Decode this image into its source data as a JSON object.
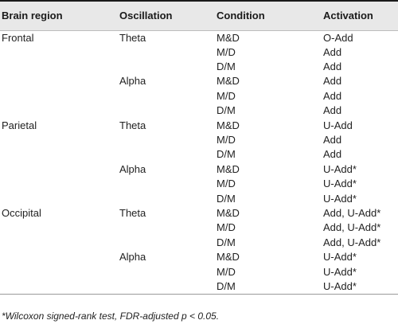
{
  "table": {
    "headers": [
      "Brain region",
      "Oscillation",
      "Condition",
      "Activation"
    ],
    "rows": [
      [
        "Frontal",
        "Theta",
        "M&D",
        "O-Add"
      ],
      [
        "",
        "",
        "M/D",
        "Add"
      ],
      [
        "",
        "",
        "D/M",
        "Add"
      ],
      [
        "",
        "Alpha",
        "M&D",
        "Add"
      ],
      [
        "",
        "",
        "M/D",
        "Add"
      ],
      [
        "",
        "",
        "D/M",
        "Add"
      ],
      [
        "Parietal",
        "Theta",
        "M&D",
        "U-Add"
      ],
      [
        "",
        "",
        "M/D",
        "Add"
      ],
      [
        "",
        "",
        "D/M",
        "Add"
      ],
      [
        "",
        "Alpha",
        "M&D",
        "U-Add*"
      ],
      [
        "",
        "",
        "M/D",
        "U-Add*"
      ],
      [
        "",
        "",
        "D/M",
        "U-Add*"
      ],
      [
        "Occipital",
        "Theta",
        "M&D",
        "Add, U-Add*"
      ],
      [
        "",
        "",
        "M/D",
        "Add, U-Add*"
      ],
      [
        "",
        "",
        "D/M",
        "Add, U-Add*"
      ],
      [
        "",
        "Alpha",
        "M&D",
        "U-Add*"
      ],
      [
        "",
        "",
        "M/D",
        "U-Add*"
      ],
      [
        "",
        "",
        "D/M",
        "U-Add*"
      ]
    ]
  },
  "footnote": "*Wilcoxon signed-rank test, FDR-adjusted p < 0.05."
}
